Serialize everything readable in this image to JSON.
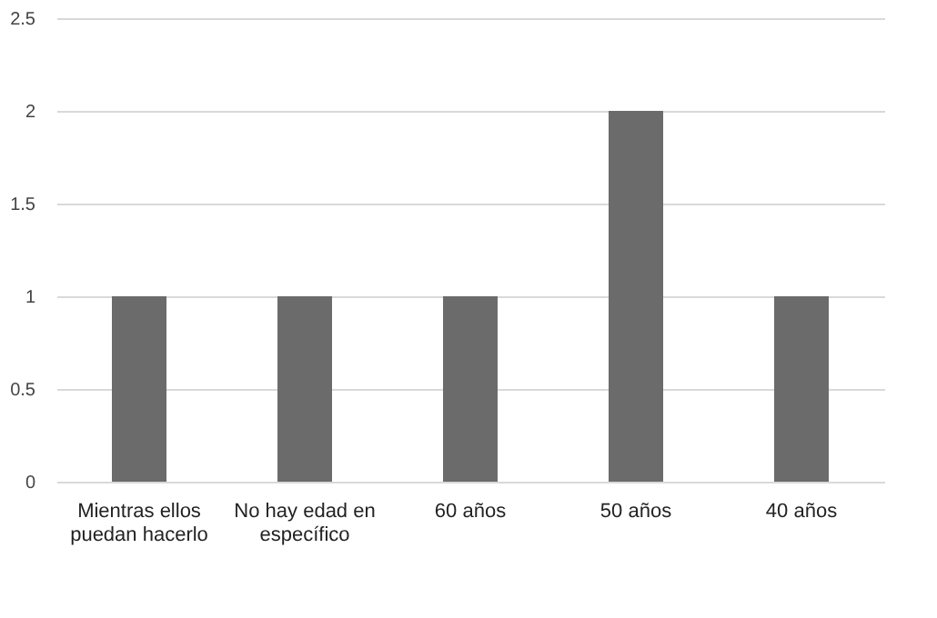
{
  "chart_data": {
    "type": "bar",
    "categories": [
      "Mientras ellos puedan hacerlo",
      "No hay edad en específico",
      "60 años",
      "50 años",
      "40 años"
    ],
    "values": [
      1,
      1,
      1,
      2,
      1
    ],
    "color": "#6b6b6b",
    "ylim": [
      0,
      2.5
    ],
    "yticks": [
      0,
      0.5,
      1,
      1.5,
      2,
      2.5
    ],
    "grid": "y"
  }
}
